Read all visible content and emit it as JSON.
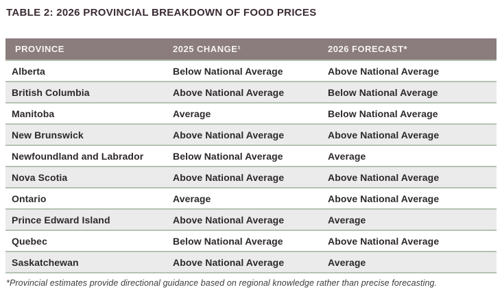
{
  "title": "TABLE 2: 2026 PROVINCIAL BREAKDOWN OF FOOD PRICES",
  "table": {
    "columns": [
      "PROVINCE",
      "2025 CHANGE¹",
      "2026 FORECAST*"
    ],
    "rows": [
      {
        "province": "Alberta",
        "change_2025": "Below National Average",
        "forecast_2026": "Above National Average"
      },
      {
        "province": "British Columbia",
        "change_2025": "Above National Average",
        "forecast_2026": "Below National Average"
      },
      {
        "province": "Manitoba",
        "change_2025": "Average",
        "forecast_2026": "Below National Average"
      },
      {
        "province": "New Brunswick",
        "change_2025": "Above National Average",
        "forecast_2026": "Above National Average"
      },
      {
        "province": "Newfoundland and Labrador",
        "change_2025": "Below National Average",
        "forecast_2026": "Average"
      },
      {
        "province": "Nova Scotia",
        "change_2025": "Above National Average",
        "forecast_2026": "Above National Average"
      },
      {
        "province": "Ontario",
        "change_2025": "Average",
        "forecast_2026": "Above National Average"
      },
      {
        "province": "Prince Edward Island",
        "change_2025": "Above National Average",
        "forecast_2026": "Average"
      },
      {
        "province": "Quebec",
        "change_2025": "Below National Average",
        "forecast_2026": "Above National Average"
      },
      {
        "province": "Saskatchewan",
        "change_2025": "Above National Average",
        "forecast_2026": "Average"
      }
    ]
  },
  "footnote": "*Provincial estimates provide directional guidance based on regional knowledge rather than precise forecasting.",
  "colors": {
    "header_background": "#8b7c7e",
    "header_text": "#f6f3f0",
    "row_stripe": "#ebebeb",
    "row_separator": "#b2c3b1",
    "body_text": "#2d282a",
    "title_text": "#3a2b33"
  }
}
